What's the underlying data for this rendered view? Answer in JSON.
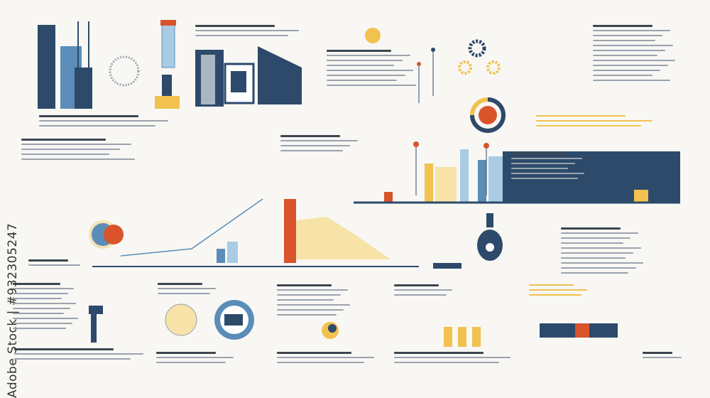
{
  "watermark": "Adobe Stock | #932305247",
  "colors": {
    "navy": "#2d4a6b",
    "blue": "#5b8db8",
    "light_blue": "#a9cbe3",
    "orange": "#d9532b",
    "yellow": "#f2c14e",
    "light_yellow": "#f7e3a8",
    "background": "#f8f7f4"
  }
}
